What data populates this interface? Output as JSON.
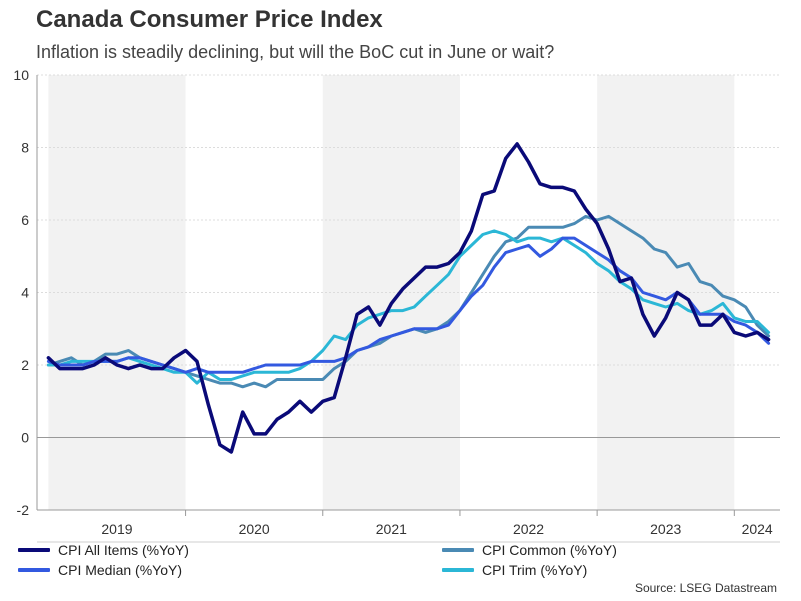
{
  "title": "Canada Consumer Price Index",
  "subtitle": "Inflation is steadily declining, but will the BoC cut in June or wait?",
  "source": "Source: LSEG Datastream",
  "chart_data": {
    "type": "line",
    "title": "Canada Consumer Price Index",
    "xlabel": "",
    "ylabel": "",
    "xlim": [
      2018.917,
      2024.333
    ],
    "ylim": [
      -2,
      10
    ],
    "y_ticks": [
      -2,
      0,
      2,
      4,
      6,
      8,
      10
    ],
    "x_year_labels": [
      "2019",
      "2020",
      "2021",
      "2022",
      "2023",
      "2024"
    ],
    "grid": true,
    "legend": "bottom",
    "shaded_years": [
      "2019",
      "2021",
      "2023"
    ],
    "series": [
      {
        "name": "CPI All Items (%YoY)",
        "color": "#0a0a78",
        "values": [
          2.2,
          1.9,
          1.9,
          1.9,
          2.0,
          2.2,
          2.0,
          1.9,
          2.0,
          1.9,
          1.9,
          2.2,
          2.4,
          2.1,
          0.9,
          -0.2,
          -0.4,
          0.7,
          0.1,
          0.1,
          0.5,
          0.7,
          1.0,
          0.7,
          1.0,
          1.1,
          2.2,
          3.4,
          3.6,
          3.1,
          3.7,
          4.1,
          4.4,
          4.7,
          4.7,
          4.8,
          5.1,
          5.7,
          6.7,
          6.8,
          7.7,
          8.1,
          7.6,
          7.0,
          6.9,
          6.9,
          6.8,
          6.3,
          5.9,
          5.2,
          4.3,
          4.4,
          3.4,
          2.8,
          3.3,
          4.0,
          3.8,
          3.1,
          3.1,
          3.4,
          2.9,
          2.8,
          2.9,
          2.7
        ]
      },
      {
        "name": "CPI Common (%YoY)",
        "color": "#4a8ab4",
        "values": [
          2.0,
          2.1,
          2.2,
          2.0,
          2.1,
          2.3,
          2.3,
          2.4,
          2.2,
          2.1,
          2.0,
          1.9,
          1.8,
          1.7,
          1.6,
          1.5,
          1.5,
          1.4,
          1.5,
          1.4,
          1.6,
          1.6,
          1.6,
          1.6,
          1.6,
          1.9,
          2.1,
          2.4,
          2.5,
          2.6,
          2.8,
          2.9,
          3.0,
          2.9,
          3.0,
          3.2,
          3.5,
          4.0,
          4.5,
          5.0,
          5.4,
          5.5,
          5.8,
          5.8,
          5.8,
          5.8,
          5.9,
          6.1,
          6.0,
          6.1,
          5.9,
          5.7,
          5.5,
          5.2,
          5.1,
          4.7,
          4.8,
          4.3,
          4.2,
          3.9,
          3.8,
          3.6,
          3.1,
          2.8
        ]
      },
      {
        "name": "CPI Median (%YoY)",
        "color": "#3359e0",
        "values": [
          2.1,
          2.0,
          2.0,
          2.0,
          2.1,
          2.1,
          2.1,
          2.2,
          2.2,
          2.1,
          2.0,
          1.9,
          1.8,
          1.9,
          1.8,
          1.8,
          1.8,
          1.8,
          1.9,
          2.0,
          2.0,
          2.0,
          2.0,
          2.1,
          2.1,
          2.1,
          2.2,
          2.4,
          2.5,
          2.7,
          2.8,
          2.9,
          3.0,
          3.0,
          3.0,
          3.1,
          3.5,
          3.9,
          4.2,
          4.7,
          5.1,
          5.2,
          5.3,
          5.0,
          5.2,
          5.5,
          5.5,
          5.3,
          5.1,
          4.9,
          4.6,
          4.4,
          4.0,
          3.9,
          3.8,
          4.0,
          3.8,
          3.4,
          3.4,
          3.4,
          3.2,
          3.1,
          2.9,
          2.6
        ]
      },
      {
        "name": "CPI Trim (%YoY)",
        "color": "#2bb7d6",
        "values": [
          2.0,
          2.0,
          2.1,
          2.1,
          2.1,
          2.1,
          2.1,
          2.2,
          2.1,
          2.0,
          1.9,
          1.8,
          1.8,
          1.5,
          1.8,
          1.6,
          1.6,
          1.7,
          1.8,
          1.8,
          1.8,
          1.8,
          1.9,
          2.1,
          2.4,
          2.8,
          2.7,
          3.1,
          3.3,
          3.4,
          3.5,
          3.5,
          3.6,
          3.9,
          4.2,
          4.5,
          5.0,
          5.3,
          5.6,
          5.7,
          5.6,
          5.4,
          5.5,
          5.5,
          5.4,
          5.5,
          5.3,
          5.1,
          4.8,
          4.6,
          4.3,
          4.1,
          3.8,
          3.7,
          3.6,
          3.7,
          3.5,
          3.4,
          3.5,
          3.7,
          3.3,
          3.2,
          3.2,
          2.9
        ]
      }
    ]
  }
}
